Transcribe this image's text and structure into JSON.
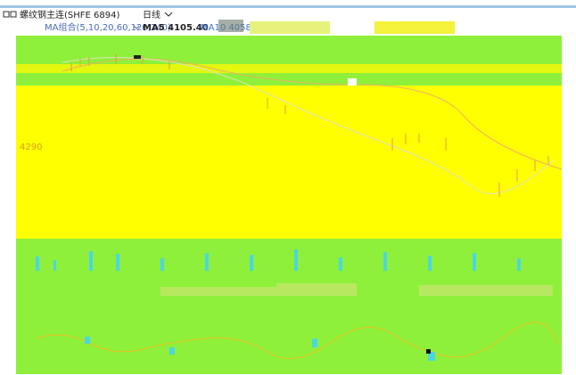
{
  "header": {
    "symbol": "螺纹钢主连(SHFE 6894)",
    "period": "日线"
  },
  "indicators": {
    "group": "MA组合(5,10,20,60,120,240)",
    "ma5": "MA5 4105.40",
    "ma10": "MA10 4058"
  },
  "price_label": "4290"
}
